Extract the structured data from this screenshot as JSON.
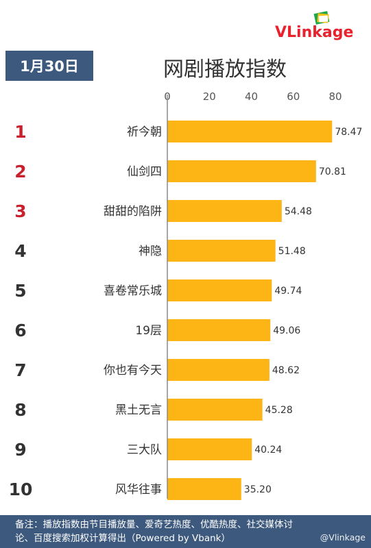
{
  "brand": {
    "logo_text": "VLinkage",
    "logo_color": "#e8232f"
  },
  "date_label": "1月30日",
  "chart_title": "网剧播放指数",
  "footer_note": "备注：播放指数由节目播放量、爱奇艺热度、优酷热度、社交媒体讨论、百度搜索加权计算得出（Powered by Vbank）",
  "watermark": "@Vlinkage",
  "colors": {
    "bar": "#fdb516",
    "header_bg": "#3d5a7e",
    "rank_top": "#c8202d",
    "rank_other": "#333333"
  },
  "chart_data": {
    "type": "bar",
    "orientation": "horizontal",
    "title": "网剧播放指数",
    "xlim": [
      0,
      80
    ],
    "xticks": [
      0,
      20,
      40,
      60,
      80
    ],
    "ranks": [
      "1",
      "2",
      "3",
      "4",
      "5",
      "6",
      "7",
      "8",
      "9",
      "10"
    ],
    "categories": [
      "祈今朝",
      "仙剑四",
      "甜甜的陷阱",
      "神隐",
      "喜卷常乐城",
      "19层",
      "你也有今天",
      "黑土无言",
      "三大队",
      "风华往事"
    ],
    "values": [
      78.47,
      70.81,
      54.48,
      51.48,
      49.74,
      49.06,
      48.62,
      45.28,
      40.24,
      35.2
    ],
    "value_labels": [
      "78.47",
      "70.81",
      "54.48",
      "51.48",
      "49.74",
      "49.06",
      "48.62",
      "45.28",
      "40.24",
      "35.20"
    ]
  }
}
